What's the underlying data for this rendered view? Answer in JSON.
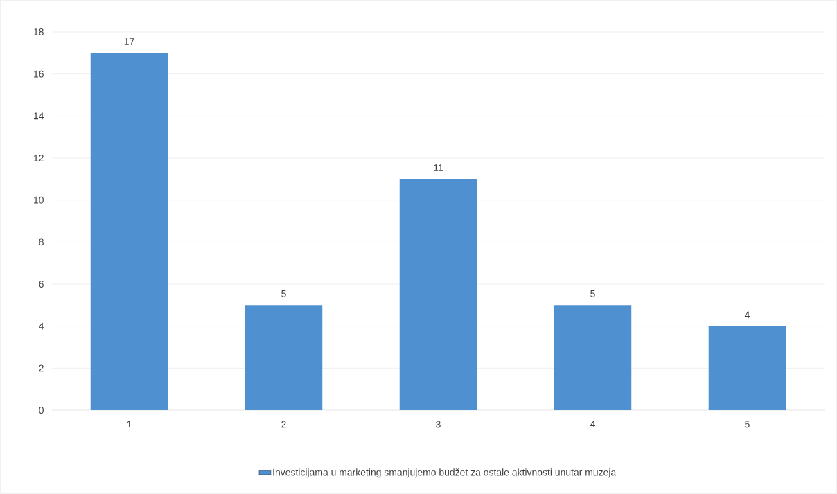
{
  "chart_data": {
    "type": "bar",
    "categories": [
      "1",
      "2",
      "3",
      "4",
      "5"
    ],
    "series": [
      {
        "name": "Investicijama u marketing smanjujemo budžet za ostale aktivnosti unutar muzeja",
        "color": "#4f91d0",
        "values": [
          17,
          5,
          11,
          5,
          4
        ]
      }
    ],
    "ylim": [
      0,
      18
    ],
    "yticks": [
      0,
      2,
      4,
      6,
      8,
      10,
      12,
      14,
      16,
      18
    ],
    "grid": "y",
    "legend": "bottom",
    "data_labels": true
  }
}
